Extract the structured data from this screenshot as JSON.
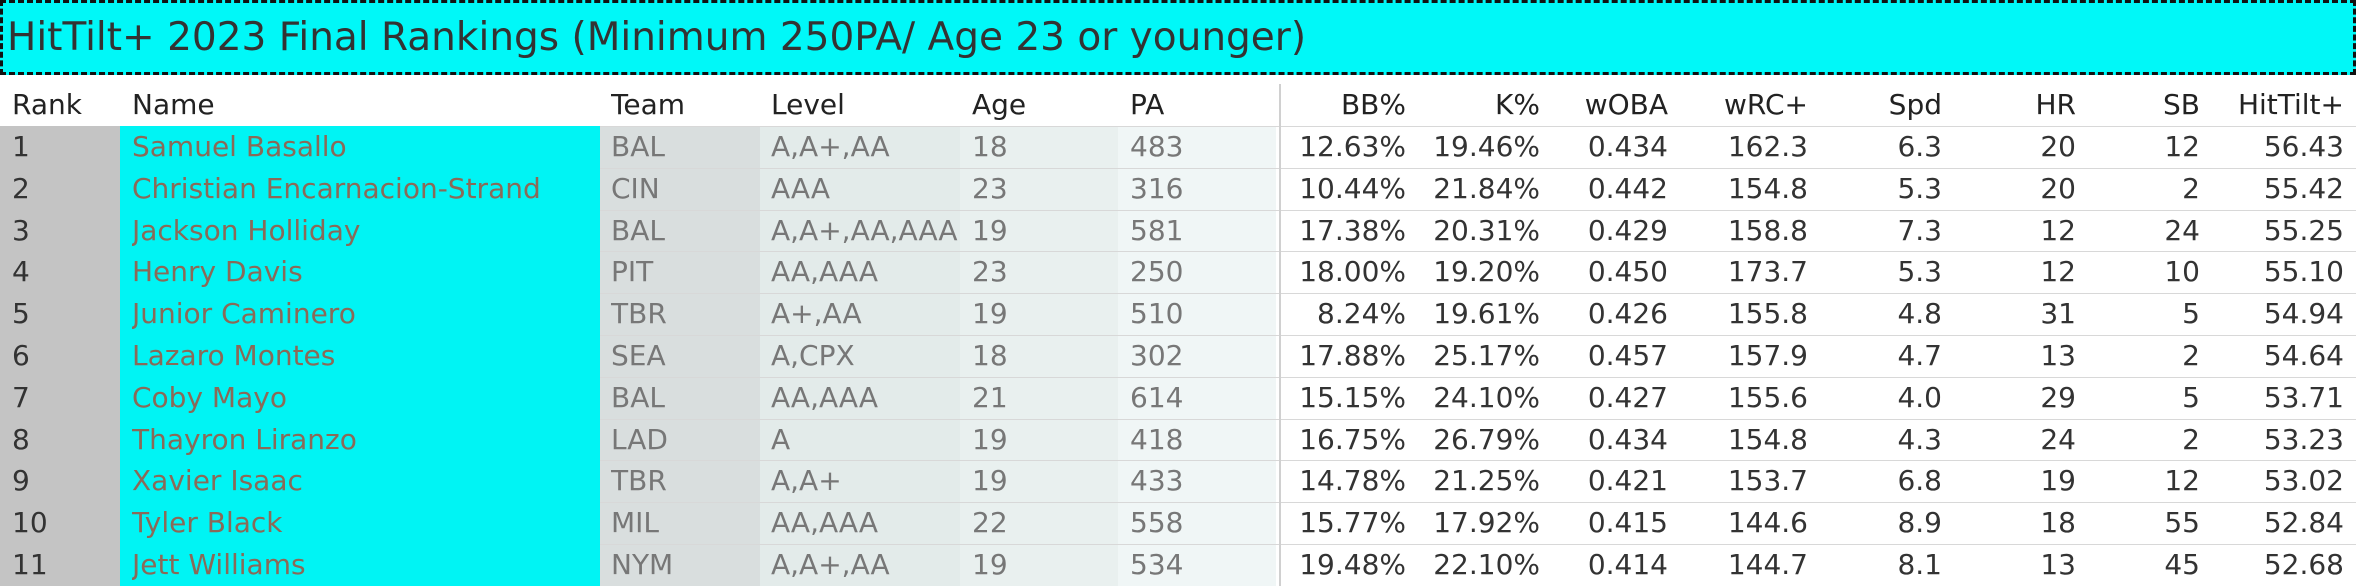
{
  "title": "HitTilt+ 2023 Final Rankings (Minimum 250PA/ Age 23 or younger)",
  "table": {
    "headers": [
      "Rank",
      "Name",
      "Team",
      "Level",
      "Age",
      "PA",
      "BB%",
      "K%",
      "wOBA",
      "wRC+",
      "Spd",
      "HR",
      "SB",
      "HitTilt+"
    ],
    "rows": [
      [
        "1",
        "Samuel Basallo",
        "BAL",
        "A,A+,AA",
        "18",
        "483",
        "12.63%",
        "19.46%",
        "0.434",
        "162.3",
        "6.3",
        "20",
        "12",
        "56.43"
      ],
      [
        "2",
        "Christian Encarnacion-Strand",
        "CIN",
        "AAA",
        "23",
        "316",
        "10.44%",
        "21.84%",
        "0.442",
        "154.8",
        "5.3",
        "20",
        "2",
        "55.42"
      ],
      [
        "3",
        "Jackson Holliday",
        "BAL",
        "A,A+,AA,AAA",
        "19",
        "581",
        "17.38%",
        "20.31%",
        "0.429",
        "158.8",
        "7.3",
        "12",
        "24",
        "55.25"
      ],
      [
        "4",
        "Henry Davis",
        "PIT",
        "AA,AAA",
        "23",
        "250",
        "18.00%",
        "19.20%",
        "0.450",
        "173.7",
        "5.3",
        "12",
        "10",
        "55.10"
      ],
      [
        "5",
        "Junior Caminero",
        "TBR",
        "A+,AA",
        "19",
        "510",
        "8.24%",
        "19.61%",
        "0.426",
        "155.8",
        "4.8",
        "31",
        "5",
        "54.94"
      ],
      [
        "6",
        "Lazaro Montes",
        "SEA",
        "A,CPX",
        "18",
        "302",
        "17.88%",
        "25.17%",
        "0.457",
        "157.9",
        "4.7",
        "13",
        "2",
        "54.64"
      ],
      [
        "7",
        "Coby Mayo",
        "BAL",
        "AA,AAA",
        "21",
        "614",
        "15.15%",
        "24.10%",
        "0.427",
        "155.6",
        "4.0",
        "29",
        "5",
        "53.71"
      ],
      [
        "8",
        "Thayron Liranzo",
        "LAD",
        "A",
        "19",
        "418",
        "16.75%",
        "26.79%",
        "0.434",
        "154.8",
        "4.3",
        "24",
        "2",
        "53.23"
      ],
      [
        "9",
        "Xavier Isaac",
        "TBR",
        "A,A+",
        "19",
        "433",
        "14.78%",
        "21.25%",
        "0.421",
        "153.7",
        "6.8",
        "19",
        "12",
        "53.02"
      ],
      [
        "10",
        "Tyler Black",
        "MIL",
        "AA,AAA",
        "22",
        "558",
        "15.77%",
        "17.92%",
        "0.415",
        "144.6",
        "8.9",
        "18",
        "55",
        "52.84"
      ],
      [
        "11",
        "Jett Williams",
        "NYM",
        "A,A+,AA",
        "19",
        "534",
        "19.48%",
        "22.10%",
        "0.414",
        "144.7",
        "8.1",
        "13",
        "45",
        "52.68"
      ]
    ]
  }
}
